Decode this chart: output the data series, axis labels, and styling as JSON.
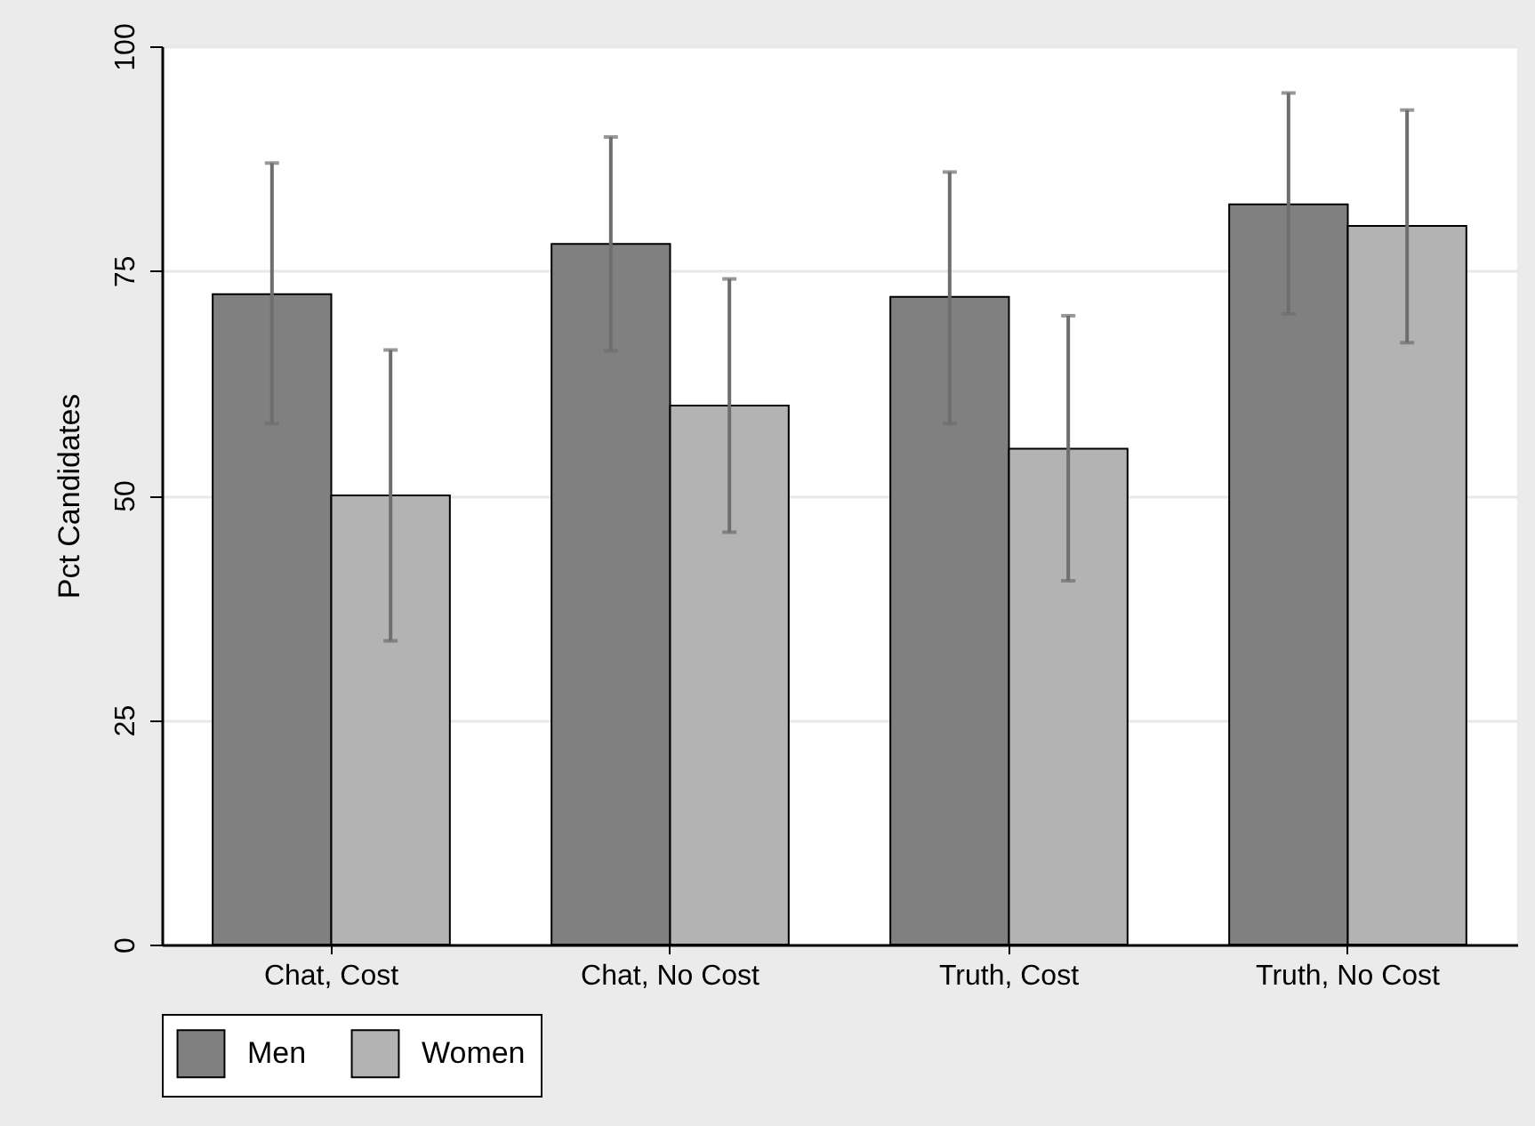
{
  "chart_data": {
    "type": "bar",
    "ylabel": "Pct Candidates",
    "categories": [
      "Chat, Cost",
      "Chat, No Cost",
      "Truth, Cost",
      "Truth, No Cost"
    ],
    "series": [
      {
        "name": "Men",
        "color": "#808080",
        "values": [
          72.4,
          78.0,
          72.1,
          82.4
        ],
        "errors": [
          [
            58.0,
            87.0
          ],
          [
            66.1,
            89.9
          ],
          [
            58.0,
            86.0
          ],
          [
            70.2,
            94.8
          ]
        ]
      },
      {
        "name": "Women",
        "color": "#b3b3b3",
        "values": [
          50.0,
          60.0,
          55.2,
          80.0
        ],
        "errors": [
          [
            33.8,
            66.2
          ],
          [
            45.9,
            74.1
          ],
          [
            40.5,
            70.0
          ],
          [
            67.0,
            92.9
          ]
        ]
      }
    ],
    "ylim": [
      0,
      100
    ],
    "yticks": [
      0,
      25,
      50,
      75,
      100
    ],
    "grid": "y",
    "legend": "bottom"
  }
}
